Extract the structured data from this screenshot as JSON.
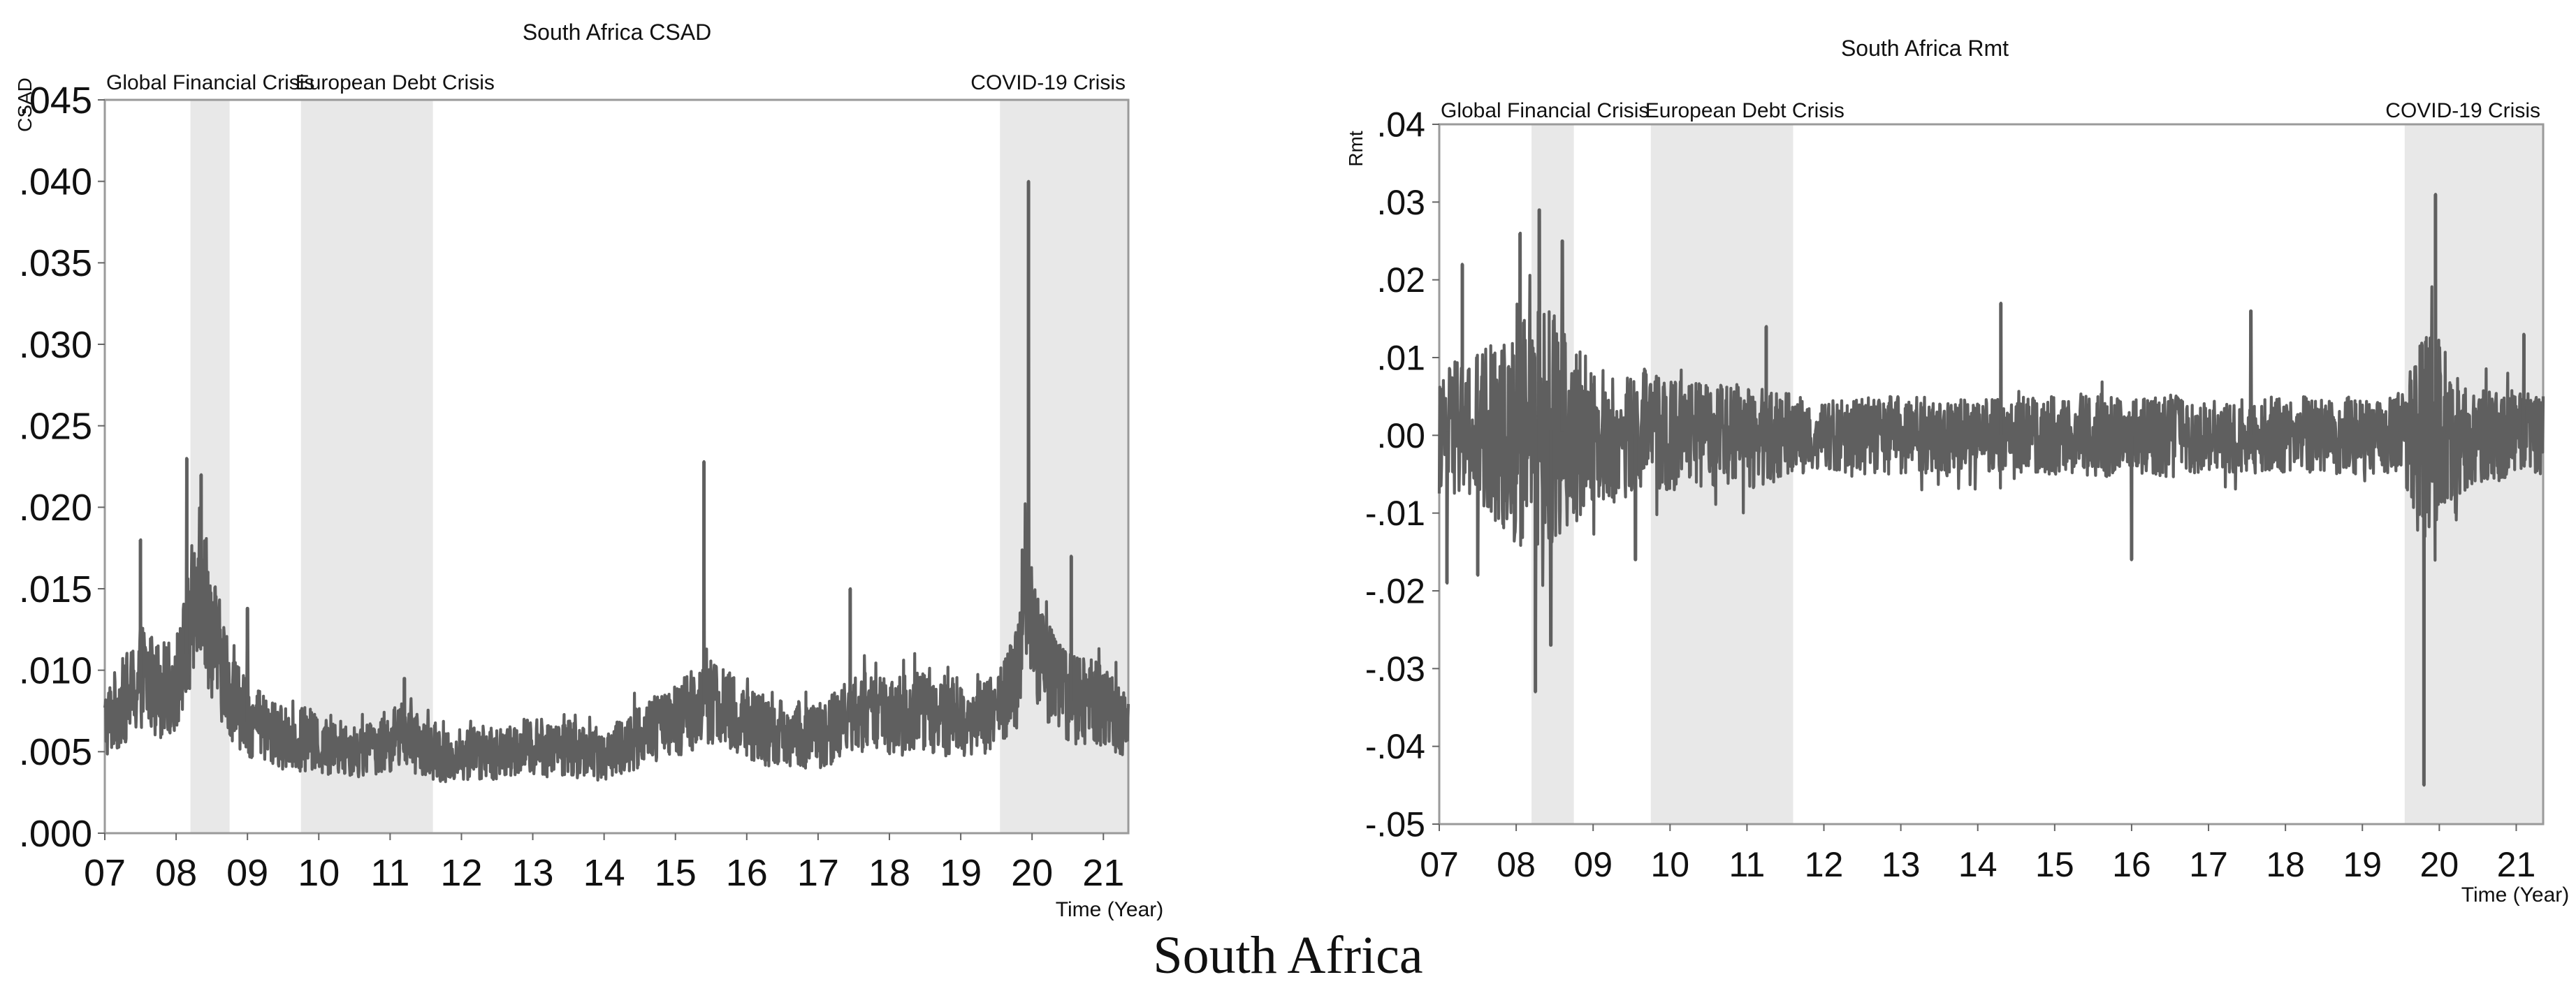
{
  "figure_caption": "South Africa",
  "chart_data": [
    {
      "type": "line",
      "title": "South Africa CSAD",
      "ylabel": "CSAD",
      "xlabel": "Time (Year)",
      "ylim": [
        0.0,
        0.045
      ],
      "xlim": [
        2007.0,
        2021.35
      ],
      "yticks": [
        {
          "v": 0.045,
          "label": ".045"
        },
        {
          "v": 0.04,
          "label": ".040"
        },
        {
          "v": 0.035,
          "label": ".035"
        },
        {
          "v": 0.03,
          "label": ".030"
        },
        {
          "v": 0.025,
          "label": ".025"
        },
        {
          "v": 0.02,
          "label": ".020"
        },
        {
          "v": 0.015,
          "label": ".015"
        },
        {
          "v": 0.01,
          "label": ".010"
        },
        {
          "v": 0.005,
          "label": ".005"
        },
        {
          "v": 0.0,
          "label": ".000"
        }
      ],
      "xticks": [
        {
          "v": 2007,
          "label": "07"
        },
        {
          "v": 2008,
          "label": "08"
        },
        {
          "v": 2009,
          "label": "09"
        },
        {
          "v": 2010,
          "label": "10"
        },
        {
          "v": 2011,
          "label": "11"
        },
        {
          "v": 2012,
          "label": "12"
        },
        {
          "v": 2013,
          "label": "13"
        },
        {
          "v": 2014,
          "label": "14"
        },
        {
          "v": 2015,
          "label": "15"
        },
        {
          "v": 2016,
          "label": "16"
        },
        {
          "v": 2017,
          "label": "17"
        },
        {
          "v": 2018,
          "label": "18"
        },
        {
          "v": 2019,
          "label": "19"
        },
        {
          "v": 2020,
          "label": "20"
        },
        {
          "v": 2021,
          "label": "21"
        }
      ],
      "crisis_periods": [
        {
          "label": "Global Financial Crisis",
          "start": 2008.2,
          "end": 2008.75
        },
        {
          "label": "European Debt Crisis",
          "start": 2009.75,
          "end": 2011.6
        },
        {
          "label": "COVID-19 Crisis",
          "start": 2019.55,
          "end": 2021.35
        }
      ],
      "series": [
        {
          "color": "#5f5f5f",
          "x": [
            2007.0,
            2007.1,
            2007.2,
            2007.3,
            2007.45,
            2007.5,
            2007.6,
            2007.8,
            2007.95,
            2008.05,
            2008.15,
            2008.25,
            2008.3,
            2008.4,
            2008.5,
            2008.6,
            2008.75,
            2008.9,
            2009.0,
            2009.2,
            2009.4,
            2009.6,
            2009.8,
            2010.0,
            2010.2,
            2010.4,
            2010.6,
            2010.8,
            2011.0,
            2011.2,
            2011.4,
            2011.6,
            2011.8,
            2012.0,
            2012.2,
            2012.4,
            2012.6,
            2012.8,
            2013.0,
            2013.2,
            2013.4,
            2013.6,
            2013.8,
            2014.0,
            2014.2,
            2014.4,
            2014.6,
            2014.8,
            2015.0,
            2015.2,
            2015.35,
            2015.45,
            2015.5,
            2015.6,
            2015.8,
            2016.0,
            2016.2,
            2016.4,
            2016.6,
            2016.8,
            2017.0,
            2017.2,
            2017.4,
            2017.5,
            2017.6,
            2017.8,
            2018.0,
            2018.2,
            2018.4,
            2018.6,
            2018.8,
            2019.0,
            2019.2,
            2019.4,
            2019.6,
            2019.8,
            2019.9,
            2020.0,
            2020.05,
            2020.1,
            2020.2,
            2020.3,
            2020.4,
            2020.5,
            2020.6,
            2020.8,
            2021.0,
            2021.2,
            2021.35
          ],
          "y": [
            0.0065,
            0.007,
            0.0075,
            0.008,
            0.0085,
            0.0095,
            0.009,
            0.0085,
            0.0085,
            0.0095,
            0.011,
            0.0135,
            0.0165,
            0.014,
            0.012,
            0.0105,
            0.0085,
            0.0075,
            0.0068,
            0.0062,
            0.0058,
            0.0055,
            0.0055,
            0.0052,
            0.005,
            0.0052,
            0.0048,
            0.0052,
            0.0055,
            0.0058,
            0.0052,
            0.0048,
            0.0045,
            0.0045,
            0.0048,
            0.0048,
            0.0046,
            0.005,
            0.0052,
            0.005,
            0.0052,
            0.0049,
            0.0048,
            0.0047,
            0.005,
            0.0055,
            0.006,
            0.0062,
            0.0065,
            0.0072,
            0.008,
            0.0078,
            0.008,
            0.0075,
            0.007,
            0.0065,
            0.0062,
            0.0058,
            0.006,
            0.0058,
            0.0058,
            0.0062,
            0.0068,
            0.0068,
            0.0072,
            0.007,
            0.0068,
            0.007,
            0.0072,
            0.007,
            0.0068,
            0.0068,
            0.0068,
            0.007,
            0.0075,
            0.0095,
            0.0155,
            0.0128,
            0.011,
            0.0105,
            0.0098,
            0.0092,
            0.0085,
            0.0082,
            0.008,
            0.0078,
            0.0075,
            0.0068,
            0.0068
          ],
          "spikes": [
            {
              "x": 2007.5,
              "y": 0.018
            },
            {
              "x": 2008.15,
              "y": 0.023
            },
            {
              "x": 2008.35,
              "y": 0.022
            },
            {
              "x": 2009.0,
              "y": 0.0138
            },
            {
              "x": 2011.2,
              "y": 0.0095
            },
            {
              "x": 2015.4,
              "y": 0.0228
            },
            {
              "x": 2017.45,
              "y": 0.015
            },
            {
              "x": 2019.95,
              "y": 0.04
            },
            {
              "x": 2020.55,
              "y": 0.017
            }
          ]
        }
      ]
    },
    {
      "type": "line",
      "title": "South Africa Rmt",
      "ylabel": "Rmt",
      "xlabel": "Time (Year)",
      "ylim": [
        -0.05,
        0.04
      ],
      "xlim": [
        2007.0,
        2021.35
      ],
      "yticks": [
        {
          "v": 0.04,
          "label": ".04"
        },
        {
          "v": 0.03,
          "label": ".03"
        },
        {
          "v": 0.02,
          "label": ".02"
        },
        {
          "v": 0.01,
          "label": ".01"
        },
        {
          "v": 0.0,
          "label": ".00"
        },
        {
          "v": -0.01,
          "label": "-.01"
        },
        {
          "v": -0.02,
          "label": "-.02"
        },
        {
          "v": -0.03,
          "label": "-.03"
        },
        {
          "v": -0.04,
          "label": "-.04"
        },
        {
          "v": -0.05,
          "label": "-.05"
        }
      ],
      "xticks": [
        {
          "v": 2007,
          "label": "07"
        },
        {
          "v": 2008,
          "label": "08"
        },
        {
          "v": 2009,
          "label": "09"
        },
        {
          "v": 2010,
          "label": "10"
        },
        {
          "v": 2011,
          "label": "11"
        },
        {
          "v": 2012,
          "label": "12"
        },
        {
          "v": 2013,
          "label": "13"
        },
        {
          "v": 2014,
          "label": "14"
        },
        {
          "v": 2015,
          "label": "15"
        },
        {
          "v": 2016,
          "label": "16"
        },
        {
          "v": 2017,
          "label": "17"
        },
        {
          "v": 2018,
          "label": "18"
        },
        {
          "v": 2019,
          "label": "19"
        },
        {
          "v": 2020,
          "label": "20"
        },
        {
          "v": 2021,
          "label": "21"
        }
      ],
      "crisis_periods": [
        {
          "label": "Global Financial Crisis",
          "start": 2008.2,
          "end": 2008.75
        },
        {
          "label": "European Debt Crisis",
          "start": 2009.75,
          "end": 2011.6
        },
        {
          "label": "COVID-19 Crisis",
          "start": 2019.55,
          "end": 2021.35
        }
      ],
      "series": [
        {
          "color": "#5f5f5f",
          "x": [
            2007.0,
            2007.2,
            2007.4,
            2007.6,
            2007.8,
            2008.0,
            2008.2,
            2008.35,
            2008.5,
            2008.7,
            2008.9,
            2009.1,
            2009.3,
            2009.5,
            2009.7,
            2009.9,
            2010.2,
            2010.5,
            2010.8,
            2011.1,
            2011.4,
            2011.7,
            2012.0,
            2012.5,
            2013.0,
            2013.5,
            2014.0,
            2014.5,
            2015.0,
            2015.5,
            2016.0,
            2016.5,
            2017.0,
            2017.5,
            2018.0,
            2018.5,
            2019.0,
            2019.4,
            2019.55,
            2019.7,
            2019.85,
            2020.0,
            2020.2,
            2020.5,
            2020.8,
            2021.1,
            2021.35
          ],
          "y": [
            0.0,
            0.001,
            -0.001,
            0.001,
            0.0,
            0.0,
            0.001,
            -0.002,
            0.002,
            -0.001,
            0.001,
            0.0,
            -0.001,
            0.0,
            0.001,
            0.0,
            0.0,
            0.0,
            0.0,
            0.0,
            0.0,
            0.0,
            0.0,
            0.0,
            0.0,
            0.0,
            0.0,
            0.0,
            0.0,
            0.0,
            0.0,
            0.0,
            0.0,
            0.0,
            0.0,
            0.0,
            0.0,
            0.0,
            0.0,
            0.0,
            -0.002,
            0.001,
            0.0,
            0.0,
            0.0,
            0.0,
            0.0
          ],
          "band": [
            0.007,
            0.009,
            0.011,
            0.011,
            0.012,
            0.014,
            0.016,
            0.018,
            0.015,
            0.012,
            0.01,
            0.009,
            0.008,
            0.008,
            0.008,
            0.007,
            0.007,
            0.0065,
            0.0065,
            0.007,
            0.006,
            0.005,
            0.0045,
            0.005,
            0.005,
            0.005,
            0.0045,
            0.005,
            0.005,
            0.0055,
            0.005,
            0.0055,
            0.0045,
            0.005,
            0.005,
            0.005,
            0.005,
            0.005,
            0.006,
            0.012,
            0.016,
            0.012,
            0.008,
            0.006,
            0.006,
            0.0055,
            0.0055
          ],
          "spikes": [
            {
              "x": 2007.3,
              "y": 0.022
            },
            {
              "x": 2008.05,
              "y": 0.026
            },
            {
              "x": 2008.3,
              "y": 0.029
            },
            {
              "x": 2008.45,
              "y": -0.027
            },
            {
              "x": 2008.6,
              "y": 0.025
            },
            {
              "x": 2008.25,
              "y": -0.033
            },
            {
              "x": 2007.1,
              "y": -0.019
            },
            {
              "x": 2007.5,
              "y": -0.018
            },
            {
              "x": 2009.55,
              "y": -0.016
            },
            {
              "x": 2011.25,
              "y": 0.014
            },
            {
              "x": 2014.3,
              "y": 0.017
            },
            {
              "x": 2017.55,
              "y": 0.016
            },
            {
              "x": 2019.8,
              "y": -0.045
            },
            {
              "x": 2019.95,
              "y": 0.031
            },
            {
              "x": 2016.0,
              "y": -0.016
            },
            {
              "x": 2021.1,
              "y": 0.013
            }
          ]
        }
      ]
    }
  ]
}
